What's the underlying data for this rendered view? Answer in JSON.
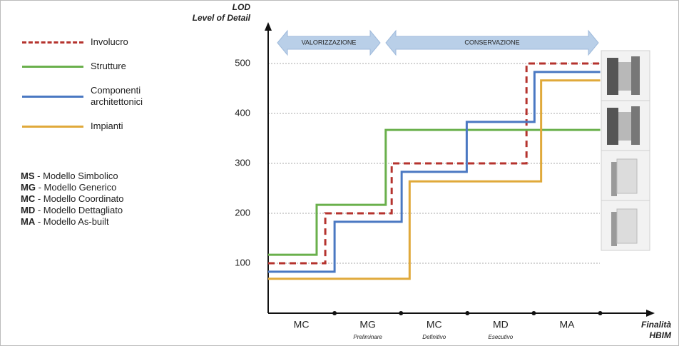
{
  "chart_data": {
    "type": "line",
    "y_label": [
      "LOD",
      "Level of Detail"
    ],
    "x_label": [
      "Finalità",
      "HBIM"
    ],
    "phases": [
      "VALORIZZAZIONE",
      "CONSERVAZIONE"
    ],
    "categories": [
      "MC",
      "MG",
      "MC",
      "MD",
      "MA"
    ],
    "category_notes": [
      null,
      "Preliminare",
      "Definitivo",
      "Esecutivo",
      null
    ],
    "xlim": [
      0,
      5.8
    ],
    "xticks": [
      1,
      2,
      3,
      4,
      5
    ],
    "ylim": [
      0,
      580
    ],
    "yticks": [
      100,
      200,
      300,
      400,
      500
    ],
    "grid": true,
    "legend": "left",
    "series": [
      {
        "name": "Involucro",
        "color": "#b5332e",
        "dashed": true,
        "x": [
          0,
          0.86,
          0.86,
          1.86,
          1.86,
          3.89,
          3.89,
          5
        ],
        "values": [
          100,
          100,
          200,
          200,
          300,
          300,
          500,
          500
        ]
      },
      {
        "name": "Strutture",
        "color": "#6ab04c",
        "dashed": false,
        "x": [
          0,
          0.73,
          0.73,
          1.77,
          1.77,
          5
        ],
        "values": [
          117,
          117,
          217,
          217,
          367,
          367
        ]
      },
      {
        "name": "Componenti architettonici",
        "color": "#4a78c2",
        "dashed": false,
        "x": [
          0,
          1,
          1,
          2.01,
          2.01,
          2.99,
          2.99,
          4.01,
          4.01,
          5
        ],
        "values": [
          83,
          83,
          183,
          183,
          283,
          283,
          383,
          383,
          483,
          483
        ]
      },
      {
        "name": "Impianti",
        "color": "#e0a93a",
        "dashed": false,
        "x": [
          0,
          2.13,
          2.13,
          4.11,
          4.11,
          5
        ],
        "values": [
          69,
          69,
          264,
          264,
          466,
          466
        ]
      }
    ],
    "abbreviations": [
      {
        "code": "MS",
        "text": "- Modello Simbolico"
      },
      {
        "code": "MG",
        "text": "- Modello Generico"
      },
      {
        "code": "MC",
        "text": "- Modello Coordinato"
      },
      {
        "code": "MD",
        "text": "- Modello Dettagliato"
      },
      {
        "code": "MA",
        "text": "- Modello As-built"
      }
    ]
  }
}
